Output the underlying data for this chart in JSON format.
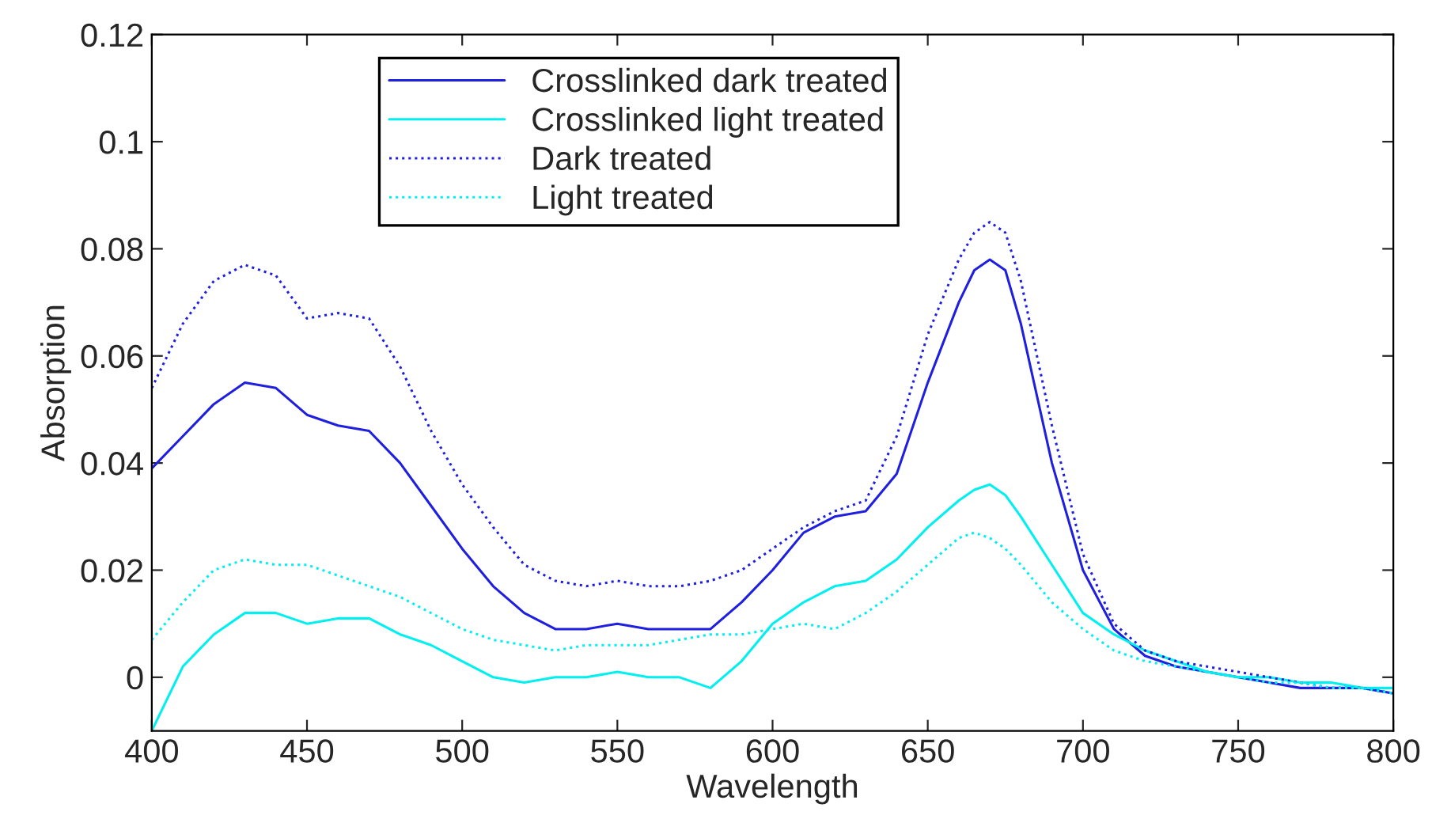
{
  "chart_data": {
    "type": "line",
    "xlabel": "Wavelength",
    "ylabel": "Absorption",
    "xlim": [
      400,
      800
    ],
    "ylim": [
      -0.01,
      0.12
    ],
    "xticks": [
      400,
      450,
      500,
      550,
      600,
      650,
      700,
      750,
      800
    ],
    "yticks": [
      0,
      0.02,
      0.04,
      0.06,
      0.08,
      0.1,
      0.12
    ],
    "grid": false,
    "legend": "top left",
    "x": [
      400,
      410,
      420,
      430,
      440,
      450,
      460,
      470,
      480,
      490,
      500,
      510,
      520,
      530,
      540,
      550,
      560,
      570,
      580,
      590,
      600,
      610,
      620,
      630,
      640,
      650,
      660,
      665,
      670,
      675,
      680,
      690,
      700,
      710,
      720,
      730,
      740,
      750,
      760,
      770,
      780,
      790,
      800
    ],
    "series": [
      {
        "name": "Crosslinked dark treated",
        "color": "#1f1fe0",
        "line_style": "solid",
        "values": [
          0.039,
          0.045,
          0.051,
          0.055,
          0.054,
          0.049,
          0.047,
          0.046,
          0.04,
          0.032,
          0.024,
          0.017,
          0.012,
          0.009,
          0.009,
          0.01,
          0.009,
          0.009,
          0.009,
          0.014,
          0.02,
          0.027,
          0.03,
          0.031,
          0.038,
          0.055,
          0.07,
          0.076,
          0.078,
          0.076,
          0.066,
          0.04,
          0.02,
          0.009,
          0.004,
          0.002,
          0.001,
          0.0,
          -0.001,
          -0.002,
          -0.002,
          -0.002,
          -0.003
        ]
      },
      {
        "name": "Crosslinked light treated",
        "color": "#00f0f0",
        "line_style": "solid",
        "values": [
          -0.01,
          0.002,
          0.008,
          0.012,
          0.012,
          0.01,
          0.011,
          0.011,
          0.008,
          0.006,
          0.003,
          0.0,
          -0.001,
          0.0,
          0.0,
          0.001,
          0.0,
          0.0,
          -0.002,
          0.003,
          0.01,
          0.014,
          0.017,
          0.018,
          0.022,
          0.028,
          0.033,
          0.035,
          0.036,
          0.034,
          0.03,
          0.021,
          0.012,
          0.008,
          0.005,
          0.003,
          0.001,
          0.0,
          0.0,
          -0.001,
          -0.001,
          -0.002,
          -0.002
        ]
      },
      {
        "name": "Dark treated",
        "color": "#1f1fe0",
        "line_style": "dotted",
        "values": [
          0.054,
          0.066,
          0.074,
          0.077,
          0.075,
          0.067,
          0.068,
          0.067,
          0.058,
          0.046,
          0.036,
          0.028,
          0.021,
          0.018,
          0.017,
          0.018,
          0.017,
          0.017,
          0.018,
          0.02,
          0.024,
          0.028,
          0.031,
          0.033,
          0.045,
          0.064,
          0.078,
          0.083,
          0.085,
          0.083,
          0.074,
          0.047,
          0.023,
          0.01,
          0.005,
          0.003,
          0.002,
          0.001,
          0.0,
          -0.001,
          -0.002,
          -0.002,
          -0.003
        ]
      },
      {
        "name": "Light treated",
        "color": "#00f0f0",
        "line_style": "dotted",
        "values": [
          0.007,
          0.014,
          0.02,
          0.022,
          0.021,
          0.021,
          0.019,
          0.017,
          0.015,
          0.012,
          0.009,
          0.007,
          0.006,
          0.005,
          0.006,
          0.006,
          0.006,
          0.007,
          0.008,
          0.008,
          0.009,
          0.01,
          0.009,
          0.012,
          0.016,
          0.021,
          0.026,
          0.027,
          0.026,
          0.024,
          0.021,
          0.014,
          0.009,
          0.005,
          0.003,
          0.002,
          0.001,
          0.0,
          -0.001,
          -0.001,
          -0.002,
          -0.002,
          -0.003
        ]
      }
    ]
  }
}
